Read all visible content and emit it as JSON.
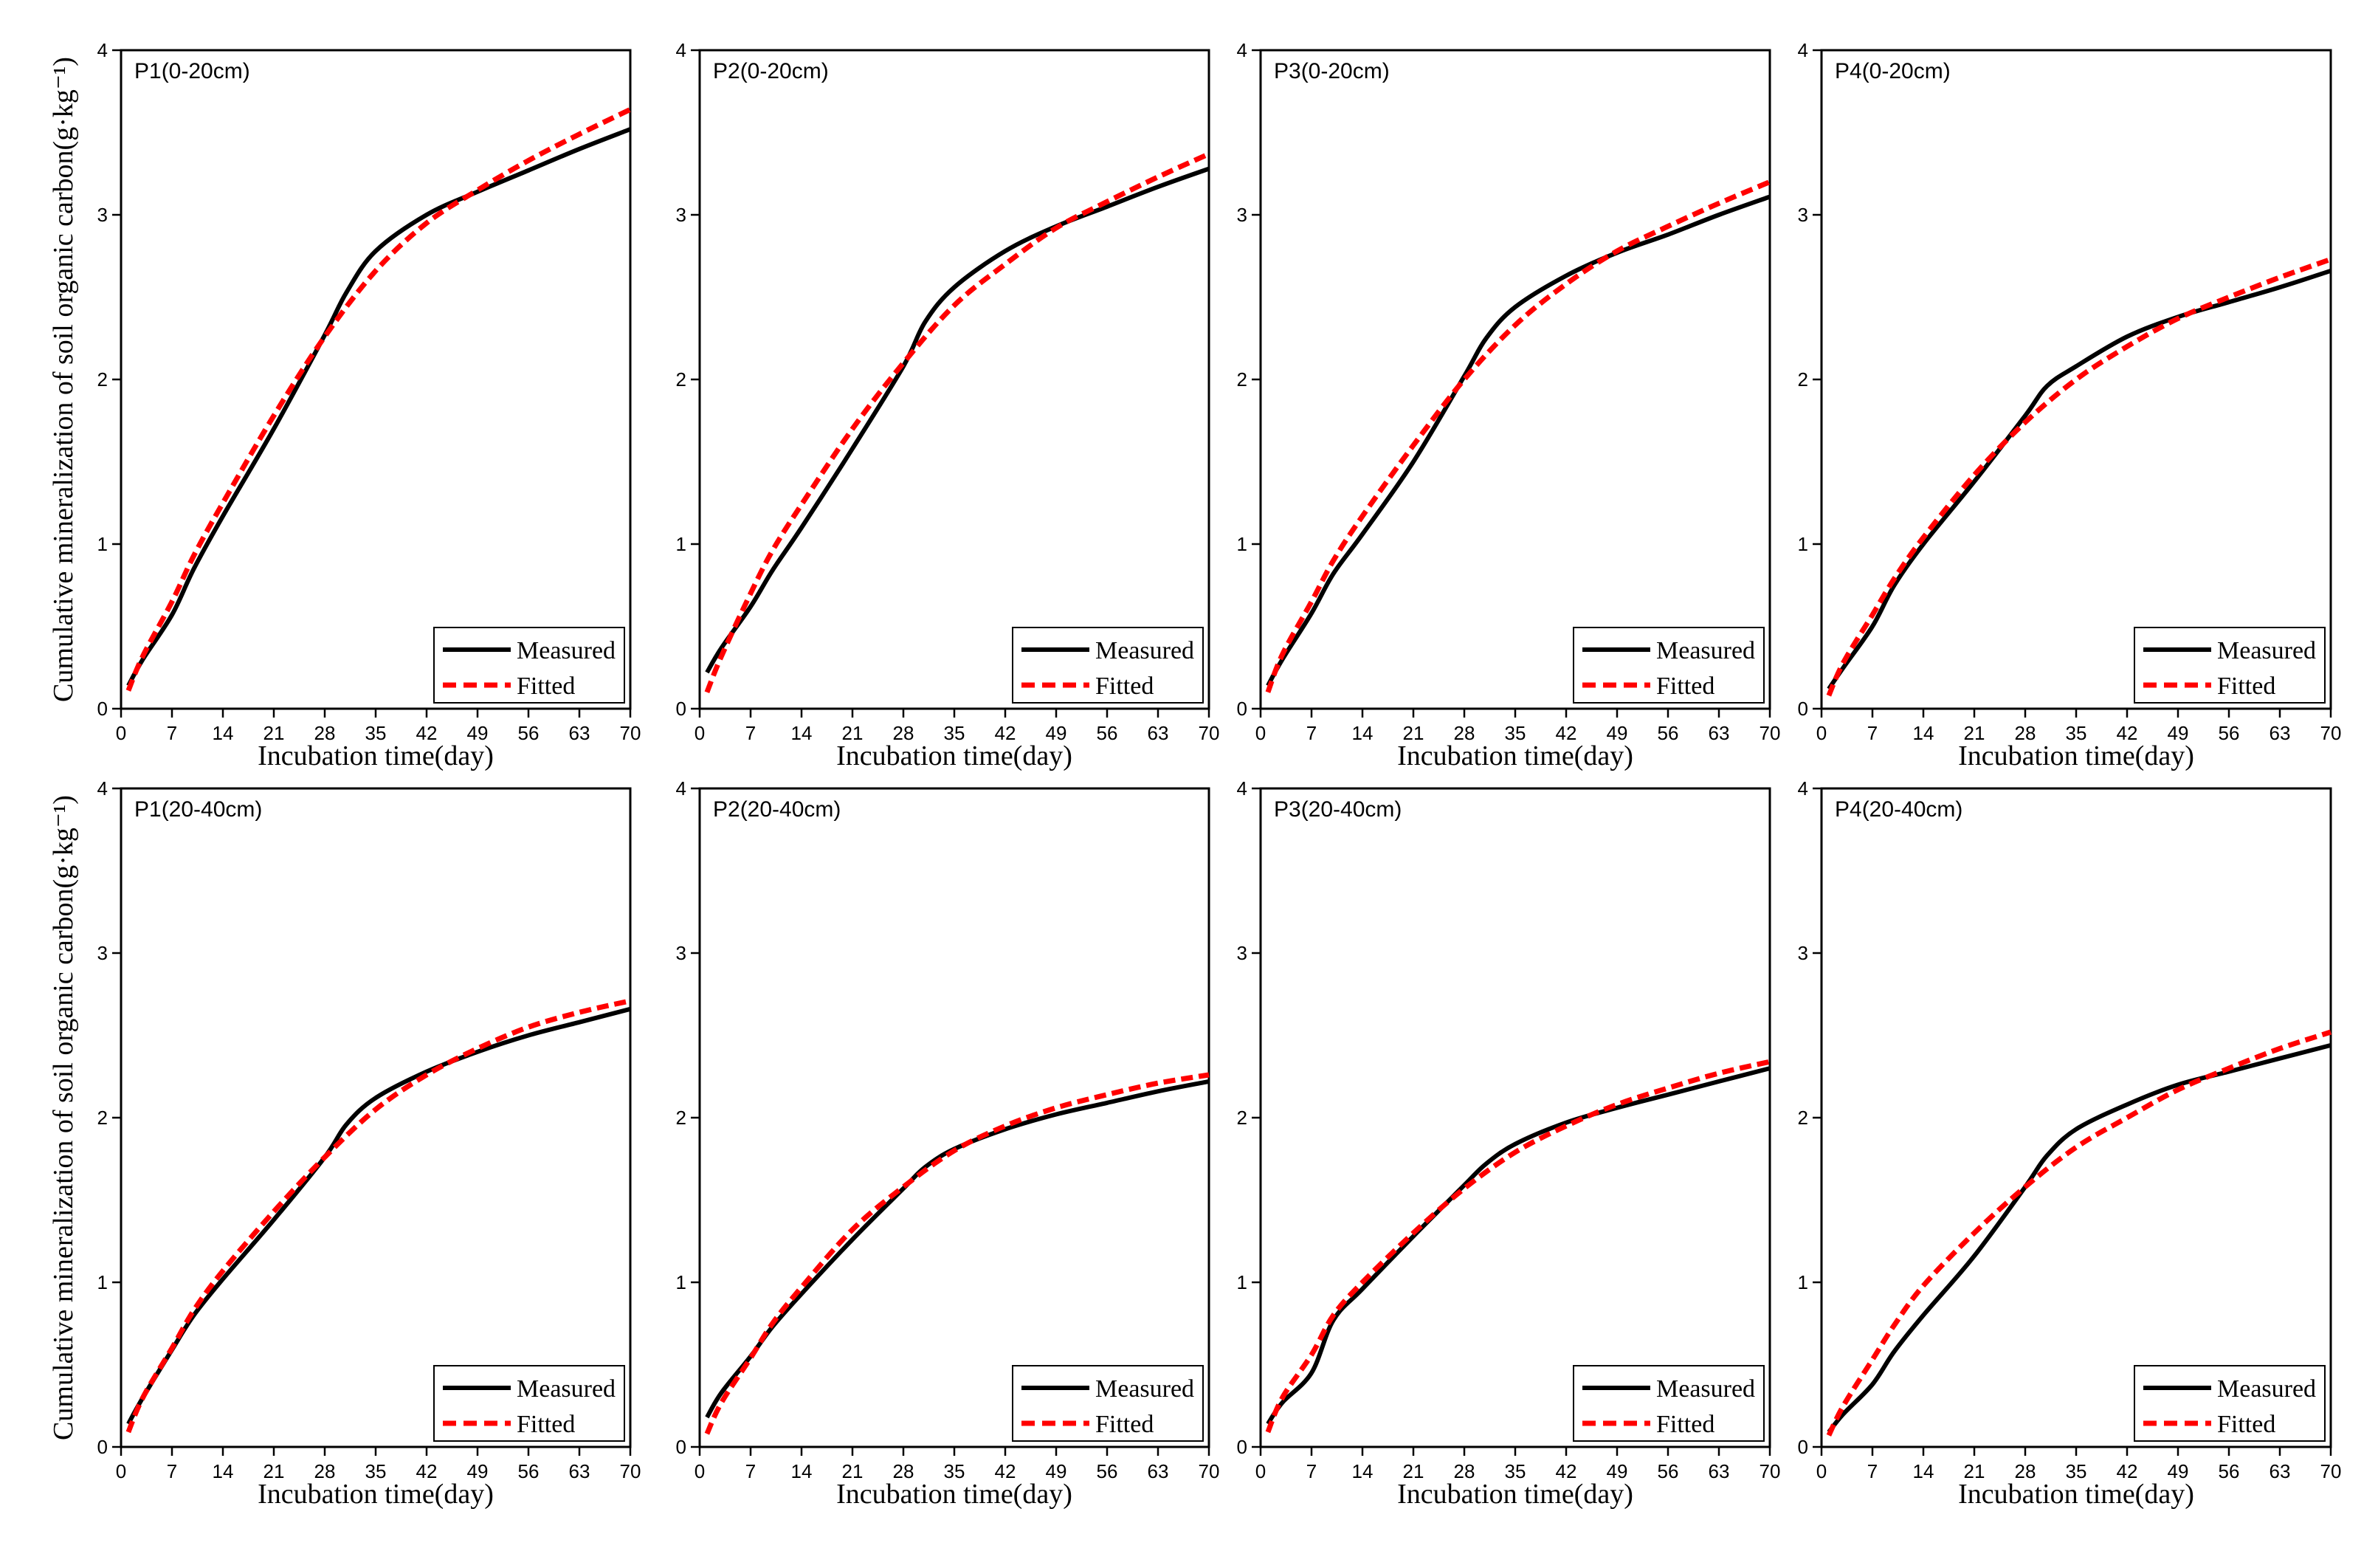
{
  "figure": {
    "ylabel": "Cumulative mineralization of soil organic carbon(g·kg⁻¹)",
    "xlabel": "Incubation time(day)"
  },
  "colors": {
    "measured": "#000000",
    "fitted": "#ff0000"
  },
  "chart_data": [
    {
      "type": "line",
      "title": "P1(0-20cm)",
      "xlabel": "Incubation time(day)",
      "ylabel": "Cumulative mineralization of soil organic carbon(g·kg⁻¹)",
      "xlim": [
        0,
        70
      ],
      "ylim": [
        0,
        4
      ],
      "xticks": [
        0,
        7,
        14,
        21,
        28,
        35,
        42,
        49,
        56,
        63,
        70
      ],
      "yticks": [
        0,
        1,
        2,
        3,
        4
      ],
      "legend": {
        "position": "bottom-right"
      },
      "series": [
        {
          "name": "Measured",
          "style": "solid",
          "x": [
            1,
            3,
            7,
            10,
            14,
            21,
            28,
            31,
            35,
            42,
            49,
            56,
            63,
            70
          ],
          "y": [
            0.14,
            0.3,
            0.57,
            0.85,
            1.17,
            1.7,
            2.27,
            2.53,
            2.78,
            3.0,
            3.14,
            3.27,
            3.4,
            3.52
          ]
        },
        {
          "name": "Fitted",
          "style": "dashed",
          "x": [
            1,
            3,
            7,
            10,
            14,
            21,
            28,
            35,
            42,
            49,
            56,
            63,
            70
          ],
          "y": [
            0.11,
            0.32,
            0.65,
            0.93,
            1.25,
            1.78,
            2.26,
            2.66,
            2.95,
            3.15,
            3.33,
            3.49,
            3.64
          ]
        }
      ]
    },
    {
      "type": "line",
      "title": "P2(0-20cm)",
      "xlabel": "Incubation time(day)",
      "ylabel": "",
      "xlim": [
        0,
        70
      ],
      "ylim": [
        0,
        4
      ],
      "xticks": [
        0,
        7,
        14,
        21,
        28,
        35,
        42,
        49,
        56,
        63,
        70
      ],
      "yticks": [
        0,
        1,
        2,
        3,
        4
      ],
      "legend": {
        "position": "bottom-right"
      },
      "series": [
        {
          "name": "Measured",
          "style": "solid",
          "x": [
            1,
            3,
            7,
            10,
            14,
            21,
            28,
            31,
            35,
            42,
            49,
            56,
            63,
            70
          ],
          "y": [
            0.22,
            0.37,
            0.62,
            0.84,
            1.1,
            1.58,
            2.08,
            2.35,
            2.56,
            2.78,
            2.93,
            3.05,
            3.17,
            3.28
          ]
        },
        {
          "name": "Fitted",
          "style": "dashed",
          "x": [
            1,
            3,
            7,
            10,
            14,
            21,
            28,
            35,
            42,
            49,
            56,
            63,
            70
          ],
          "y": [
            0.1,
            0.32,
            0.7,
            0.96,
            1.24,
            1.7,
            2.1,
            2.45,
            2.7,
            2.92,
            3.08,
            3.23,
            3.37
          ]
        }
      ]
    },
    {
      "type": "line",
      "title": "P3(0-20cm)",
      "xlabel": "Incubation time(day)",
      "ylabel": "",
      "xlim": [
        0,
        70
      ],
      "ylim": [
        0,
        4
      ],
      "xticks": [
        0,
        7,
        14,
        21,
        28,
        35,
        42,
        49,
        56,
        63,
        70
      ],
      "yticks": [
        0,
        1,
        2,
        3,
        4
      ],
      "legend": {
        "position": "bottom-right"
      },
      "series": [
        {
          "name": "Measured",
          "style": "solid",
          "x": [
            1,
            3,
            7,
            10,
            14,
            21,
            28,
            31,
            35,
            42,
            49,
            56,
            63,
            70
          ],
          "y": [
            0.14,
            0.3,
            0.58,
            0.82,
            1.06,
            1.5,
            2.02,
            2.25,
            2.44,
            2.63,
            2.77,
            2.88,
            3.0,
            3.11
          ]
        },
        {
          "name": "Fitted",
          "style": "dashed",
          "x": [
            1,
            3,
            7,
            10,
            14,
            21,
            28,
            35,
            42,
            49,
            56,
            63,
            70
          ],
          "y": [
            0.1,
            0.33,
            0.65,
            0.9,
            1.17,
            1.6,
            2.0,
            2.33,
            2.58,
            2.78,
            2.93,
            3.07,
            3.2
          ]
        }
      ]
    },
    {
      "type": "line",
      "title": "P4(0-20cm)",
      "xlabel": "Incubation time(day)",
      "ylabel": "",
      "xlim": [
        0,
        70
      ],
      "ylim": [
        0,
        4
      ],
      "xticks": [
        0,
        7,
        14,
        21,
        28,
        35,
        42,
        49,
        56,
        63,
        70
      ],
      "yticks": [
        0,
        1,
        2,
        3,
        4
      ],
      "legend": {
        "position": "bottom-right"
      },
      "series": [
        {
          "name": "Measured",
          "style": "solid",
          "x": [
            1,
            3,
            7,
            10,
            14,
            21,
            28,
            31,
            35,
            42,
            49,
            56,
            63,
            70
          ],
          "y": [
            0.12,
            0.25,
            0.5,
            0.75,
            1.0,
            1.38,
            1.78,
            1.96,
            2.08,
            2.26,
            2.38,
            2.47,
            2.56,
            2.66
          ]
        },
        {
          "name": "Fitted",
          "style": "dashed",
          "x": [
            1,
            3,
            7,
            10,
            14,
            21,
            28,
            35,
            42,
            49,
            56,
            63,
            70
          ],
          "y": [
            0.08,
            0.28,
            0.57,
            0.79,
            1.04,
            1.42,
            1.74,
            2.0,
            2.2,
            2.37,
            2.5,
            2.62,
            2.73
          ]
        }
      ]
    },
    {
      "type": "line",
      "title": "P1(20-40cm)",
      "xlabel": "Incubation time(day)",
      "ylabel": "Cumulative mineralization of soil organic carbon(g·kg⁻¹)",
      "xlim": [
        0,
        70
      ],
      "ylim": [
        0,
        4
      ],
      "xticks": [
        0,
        7,
        14,
        21,
        28,
        35,
        42,
        49,
        56,
        63,
        70
      ],
      "yticks": [
        0,
        1,
        2,
        3,
        4
      ],
      "legend": {
        "position": "bottom-right"
      },
      "series": [
        {
          "name": "Measured",
          "style": "solid",
          "x": [
            1,
            3,
            7,
            10,
            14,
            21,
            28,
            31,
            35,
            42,
            49,
            56,
            63,
            70
          ],
          "y": [
            0.14,
            0.3,
            0.59,
            0.8,
            1.02,
            1.38,
            1.76,
            1.96,
            2.12,
            2.28,
            2.4,
            2.5,
            2.58,
            2.66
          ]
        },
        {
          "name": "Fitted",
          "style": "dashed",
          "x": [
            1,
            3,
            7,
            10,
            14,
            21,
            28,
            35,
            42,
            49,
            56,
            63,
            70
          ],
          "y": [
            0.09,
            0.3,
            0.6,
            0.83,
            1.07,
            1.43,
            1.76,
            2.05,
            2.26,
            2.42,
            2.55,
            2.64,
            2.71
          ]
        }
      ]
    },
    {
      "type": "line",
      "title": "P2(20-40cm)",
      "xlabel": "Incubation time(day)",
      "ylabel": "",
      "xlim": [
        0,
        70
      ],
      "ylim": [
        0,
        4
      ],
      "xticks": [
        0,
        7,
        14,
        21,
        28,
        35,
        42,
        49,
        56,
        63,
        70
      ],
      "yticks": [
        0,
        1,
        2,
        3,
        4
      ],
      "legend": {
        "position": "bottom-right"
      },
      "series": [
        {
          "name": "Measured",
          "style": "solid",
          "x": [
            1,
            3,
            7,
            10,
            14,
            21,
            28,
            31,
            35,
            42,
            49,
            56,
            63,
            70
          ],
          "y": [
            0.18,
            0.33,
            0.55,
            0.73,
            0.93,
            1.26,
            1.57,
            1.7,
            1.81,
            1.93,
            2.02,
            2.09,
            2.16,
            2.22
          ]
        },
        {
          "name": "Fitted",
          "style": "dashed",
          "x": [
            1,
            3,
            7,
            10,
            14,
            21,
            28,
            35,
            42,
            49,
            56,
            63,
            70
          ],
          "y": [
            0.08,
            0.27,
            0.54,
            0.75,
            0.97,
            1.32,
            1.58,
            1.8,
            1.95,
            2.06,
            2.14,
            2.21,
            2.26
          ]
        }
      ]
    },
    {
      "type": "line",
      "title": "P3(20-40cm)",
      "xlabel": "Incubation time(day)",
      "ylabel": "",
      "xlim": [
        0,
        70
      ],
      "ylim": [
        0,
        4
      ],
      "xticks": [
        0,
        7,
        14,
        21,
        28,
        35,
        42,
        49,
        56,
        63,
        70
      ],
      "yticks": [
        0,
        1,
        2,
        3,
        4
      ],
      "legend": {
        "position": "bottom-right"
      },
      "series": [
        {
          "name": "Measured",
          "style": "solid",
          "x": [
            1,
            3,
            7,
            10,
            14,
            21,
            28,
            31,
            35,
            42,
            49,
            56,
            63,
            70
          ],
          "y": [
            0.14,
            0.27,
            0.45,
            0.77,
            0.96,
            1.28,
            1.59,
            1.72,
            1.84,
            1.97,
            2.06,
            2.14,
            2.22,
            2.3
          ]
        },
        {
          "name": "Fitted",
          "style": "dashed",
          "x": [
            1,
            3,
            7,
            10,
            14,
            21,
            28,
            35,
            42,
            49,
            56,
            63,
            70
          ],
          "y": [
            0.09,
            0.3,
            0.56,
            0.8,
            1.0,
            1.3,
            1.57,
            1.79,
            1.95,
            2.08,
            2.18,
            2.27,
            2.34
          ]
        }
      ]
    },
    {
      "type": "line",
      "title": "P4(20-40cm)",
      "xlabel": "Incubation time(day)",
      "ylabel": "",
      "xlim": [
        0,
        70
      ],
      "ylim": [
        0,
        4
      ],
      "xticks": [
        0,
        7,
        14,
        21,
        28,
        35,
        42,
        49,
        56,
        63,
        70
      ],
      "yticks": [
        0,
        1,
        2,
        3,
        4
      ],
      "legend": {
        "position": "bottom-right"
      },
      "series": [
        {
          "name": "Measured",
          "style": "solid",
          "x": [
            1,
            3,
            7,
            10,
            14,
            21,
            28,
            31,
            35,
            42,
            49,
            56,
            63,
            70
          ],
          "y": [
            0.09,
            0.2,
            0.38,
            0.58,
            0.8,
            1.16,
            1.58,
            1.77,
            1.93,
            2.08,
            2.2,
            2.28,
            2.36,
            2.44
          ]
        },
        {
          "name": "Fitted",
          "style": "dashed",
          "x": [
            1,
            3,
            7,
            10,
            14,
            21,
            28,
            35,
            42,
            49,
            56,
            63,
            70
          ],
          "y": [
            0.07,
            0.25,
            0.53,
            0.74,
            0.98,
            1.3,
            1.58,
            1.82,
            2.0,
            2.17,
            2.3,
            2.42,
            2.52
          ]
        }
      ]
    }
  ]
}
